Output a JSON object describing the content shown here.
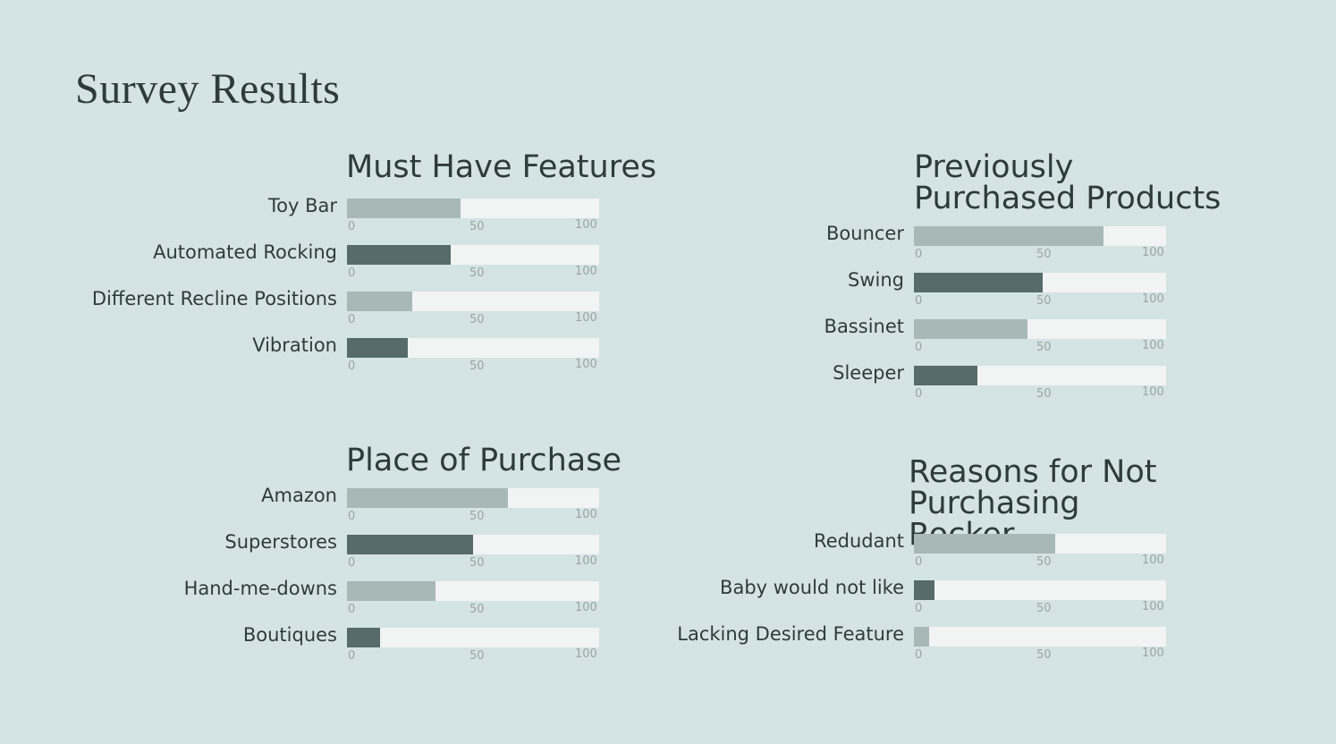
{
  "page_title": "Survey Results",
  "colors": {
    "light_bar": "#a7b8b7",
    "dark_bar": "#566b6a",
    "track": "#f2f3f3",
    "background": "#d4e3e3"
  },
  "chart_data": [
    {
      "type": "bar",
      "orientation": "horizontal",
      "title": "Must Have Features",
      "categories": [
        "Toy Bar",
        "Automated Rocking",
        "Different Recline Positions",
        "Vibration"
      ],
      "values": [
        45,
        41,
        26,
        24
      ],
      "xlim": [
        0,
        100
      ],
      "ticks": [
        "0",
        "50",
        "100"
      ]
    },
    {
      "type": "bar",
      "orientation": "horizontal",
      "title": "Previously Purchased Products",
      "categories": [
        "Bouncer",
        "Swing",
        "Bassinet",
        "Sleeper"
      ],
      "values": [
        75,
        51,
        45,
        25
      ],
      "xlim": [
        0,
        100
      ],
      "ticks": [
        "0",
        "50",
        "100"
      ]
    },
    {
      "type": "bar",
      "orientation": "horizontal",
      "title": "Place of Purchase",
      "categories": [
        "Amazon",
        "Superstores",
        "Hand-me-downs",
        "Boutiques"
      ],
      "values": [
        64,
        50,
        35,
        13
      ],
      "xlim": [
        0,
        100
      ],
      "ticks": [
        "0",
        "50",
        "100"
      ]
    },
    {
      "type": "bar",
      "orientation": "horizontal",
      "title": "Reasons for Not Purchasing Rocker",
      "categories": [
        "Redudant",
        "Baby would not like",
        "Lacking Desired Feature"
      ],
      "values": [
        56,
        8,
        6
      ],
      "xlim": [
        0,
        100
      ],
      "ticks": [
        "0",
        "50",
        "100"
      ]
    }
  ]
}
